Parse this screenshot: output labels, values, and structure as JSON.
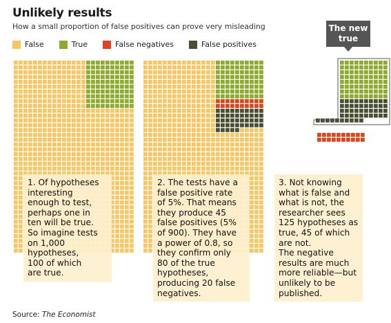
{
  "title": "Unlikely results",
  "subtitle": "How a small proportion of false positives can prove very misleading",
  "legend": [
    {
      "label": "False",
      "color": "#f8c764"
    },
    {
      "label": "True",
      "color": "#8bad2b"
    },
    {
      "label": "False negatives",
      "color": "#e0441c"
    },
    {
      "label": "False positives",
      "color": "#484f32"
    }
  ],
  "colors": {
    "false": "#f8c764",
    "true": "#8bad2b",
    "false_negative": "#e0441c",
    "false_positive": "#484f32"
  },
  "callout": {
    "line1": "The new",
    "line2": "true"
  },
  "panels": [
    {
      "lines": [
        "1. Of hypotheses",
        "interesting",
        "enough to test,",
        "perhaps one in",
        "ten will be true.",
        "So imagine tests",
        "on 1,000",
        "hypotheses,",
        "100 of which",
        "are true."
      ]
    },
    {
      "lines": [
        "2. The tests have a",
        "false positive rate",
        "of 5%. That means",
        "they produce 45",
        "false positives (5%",
        "of 900). They have",
        "a power of 0.8, so",
        "they confirm only",
        "80 of the true",
        "hypotheses,",
        "producing 20 false",
        "negatives."
      ]
    },
    {
      "lines": [
        "3. Not knowing",
        "what is false and",
        "what is not, the",
        "researcher sees",
        "125 hypotheses as",
        "true, 45 of which",
        "are not.",
        "The negative",
        "results are much",
        "more reliable—but",
        "unlikely to be",
        "published."
      ]
    }
  ],
  "source": {
    "prefix": "Source: ",
    "name": "The Economist"
  },
  "chart_data": {
    "type": "waffle",
    "units": "hypotheses",
    "total": 1000,
    "panels": [
      {
        "step": 1,
        "values": {
          "False": 900,
          "True": 100
        }
      },
      {
        "step": 2,
        "values": {
          "False": 855,
          "True": 80,
          "False negatives": 20,
          "False positives": 45
        }
      },
      {
        "step": 3,
        "values": {
          "True": 80,
          "False positives": 45,
          "False negatives": 20
        }
      }
    ]
  }
}
